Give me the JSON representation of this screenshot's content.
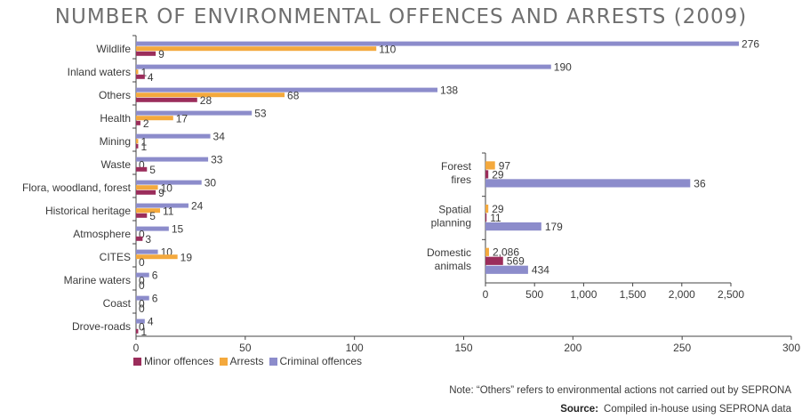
{
  "title": "NUMBER OF ENVIRONMENTAL OFFENCES AND ARRESTS (2009)",
  "colors": {
    "minor": "#9b2d5b",
    "arrests": "#f4a93d",
    "criminal": "#8c8ccb",
    "axis": "#444444",
    "text": "#3a3a3a"
  },
  "legend": {
    "minor": "Minor offences",
    "arrests": "Arrests",
    "criminal": "Criminal offences"
  },
  "note": "Note: “Others” refers to environmental actions not carried out by SEPRONA",
  "source": {
    "label": "Source:",
    "text": "Compiled in-house using SEPRONA data"
  },
  "chart_data": [
    {
      "type": "bar",
      "orientation": "horizontal",
      "categories": [
        "Wildlife",
        "Inland waters",
        "Others",
        "Health",
        "Mining",
        "Waste",
        "Flora, woodland, forest",
        "Historical heritage",
        "Atmosphere",
        "CITES",
        "Marine waters",
        "Coast",
        "Drove-roads"
      ],
      "series": [
        {
          "name": "Criminal offences",
          "values": [
            276,
            190,
            138,
            53,
            34,
            33,
            30,
            24,
            15,
            10,
            6,
            6,
            4
          ]
        },
        {
          "name": "Arrests",
          "values": [
            110,
            1,
            68,
            17,
            1,
            0,
            10,
            11,
            0,
            19,
            0,
            0,
            0
          ]
        },
        {
          "name": "Minor offences",
          "values": [
            9,
            4,
            28,
            2,
            1,
            5,
            9,
            5,
            3,
            0,
            0,
            0,
            1
          ]
        }
      ],
      "xticks": [
        "0",
        "50",
        "100",
        "150",
        "200",
        "250",
        "300"
      ],
      "xlim": [
        0,
        300
      ],
      "legend_position": "bottom-left"
    },
    {
      "type": "bar",
      "orientation": "horizontal",
      "categories": [
        [
          "Forest",
          "fires"
        ],
        [
          "Spatial",
          "planning"
        ],
        [
          "Domestic",
          "animals"
        ]
      ],
      "series": [
        {
          "name": "Arrests",
          "values": [
            97,
            29,
            36
          ]
        },
        {
          "name": "Minor offences",
          "values": [
            29,
            11,
            179
          ]
        },
        {
          "name": "Criminal offences",
          "values": [
            2086,
            569,
            434
          ]
        }
      ],
      "value_labels": [
        [
          "97",
          "29",
          "36"
        ],
        [
          "29",
          "11",
          "179"
        ],
        [
          "2,086",
          "569",
          "434"
        ]
      ],
      "xticks": [
        "0",
        "500",
        "1,000",
        "1,500",
        "2,000",
        "2,500"
      ],
      "xlim": [
        0,
        2500
      ]
    }
  ]
}
